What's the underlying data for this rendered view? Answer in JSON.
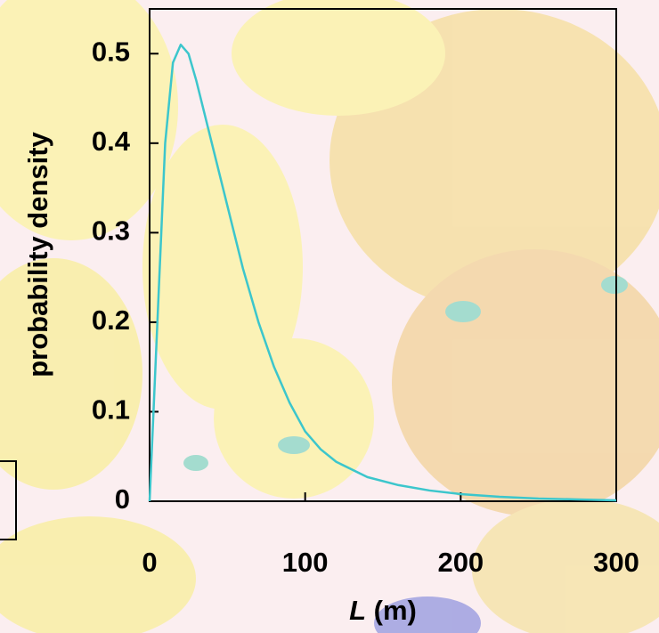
{
  "chart_data": {
    "type": "line",
    "y_label": "probability density",
    "x_label_var": "L",
    "x_label_unit": "(m)",
    "x": [
      0,
      5,
      10,
      15,
      20,
      25,
      30,
      40,
      50,
      60,
      70,
      80,
      90,
      100,
      110,
      120,
      140,
      160,
      180,
      200,
      225,
      250,
      275,
      300
    ],
    "series": [
      {
        "color": "#3cc6cc",
        "values": [
          0,
          0.2,
          0.4,
          0.49,
          0.51,
          0.5,
          0.47,
          0.4,
          0.33,
          0.26,
          0.2,
          0.15,
          0.11,
          0.078,
          0.058,
          0.044,
          0.027,
          0.018,
          0.012,
          0.008,
          0.005,
          0.003,
          0.002,
          0.001
        ]
      }
    ],
    "xlim": [
      0,
      300
    ],
    "xticks": [
      0,
      100,
      200,
      300
    ],
    "ylim": [
      0,
      0.55
    ],
    "yticks": [
      0,
      0.1,
      0.2,
      0.3,
      0.4,
      0.5
    ]
  }
}
